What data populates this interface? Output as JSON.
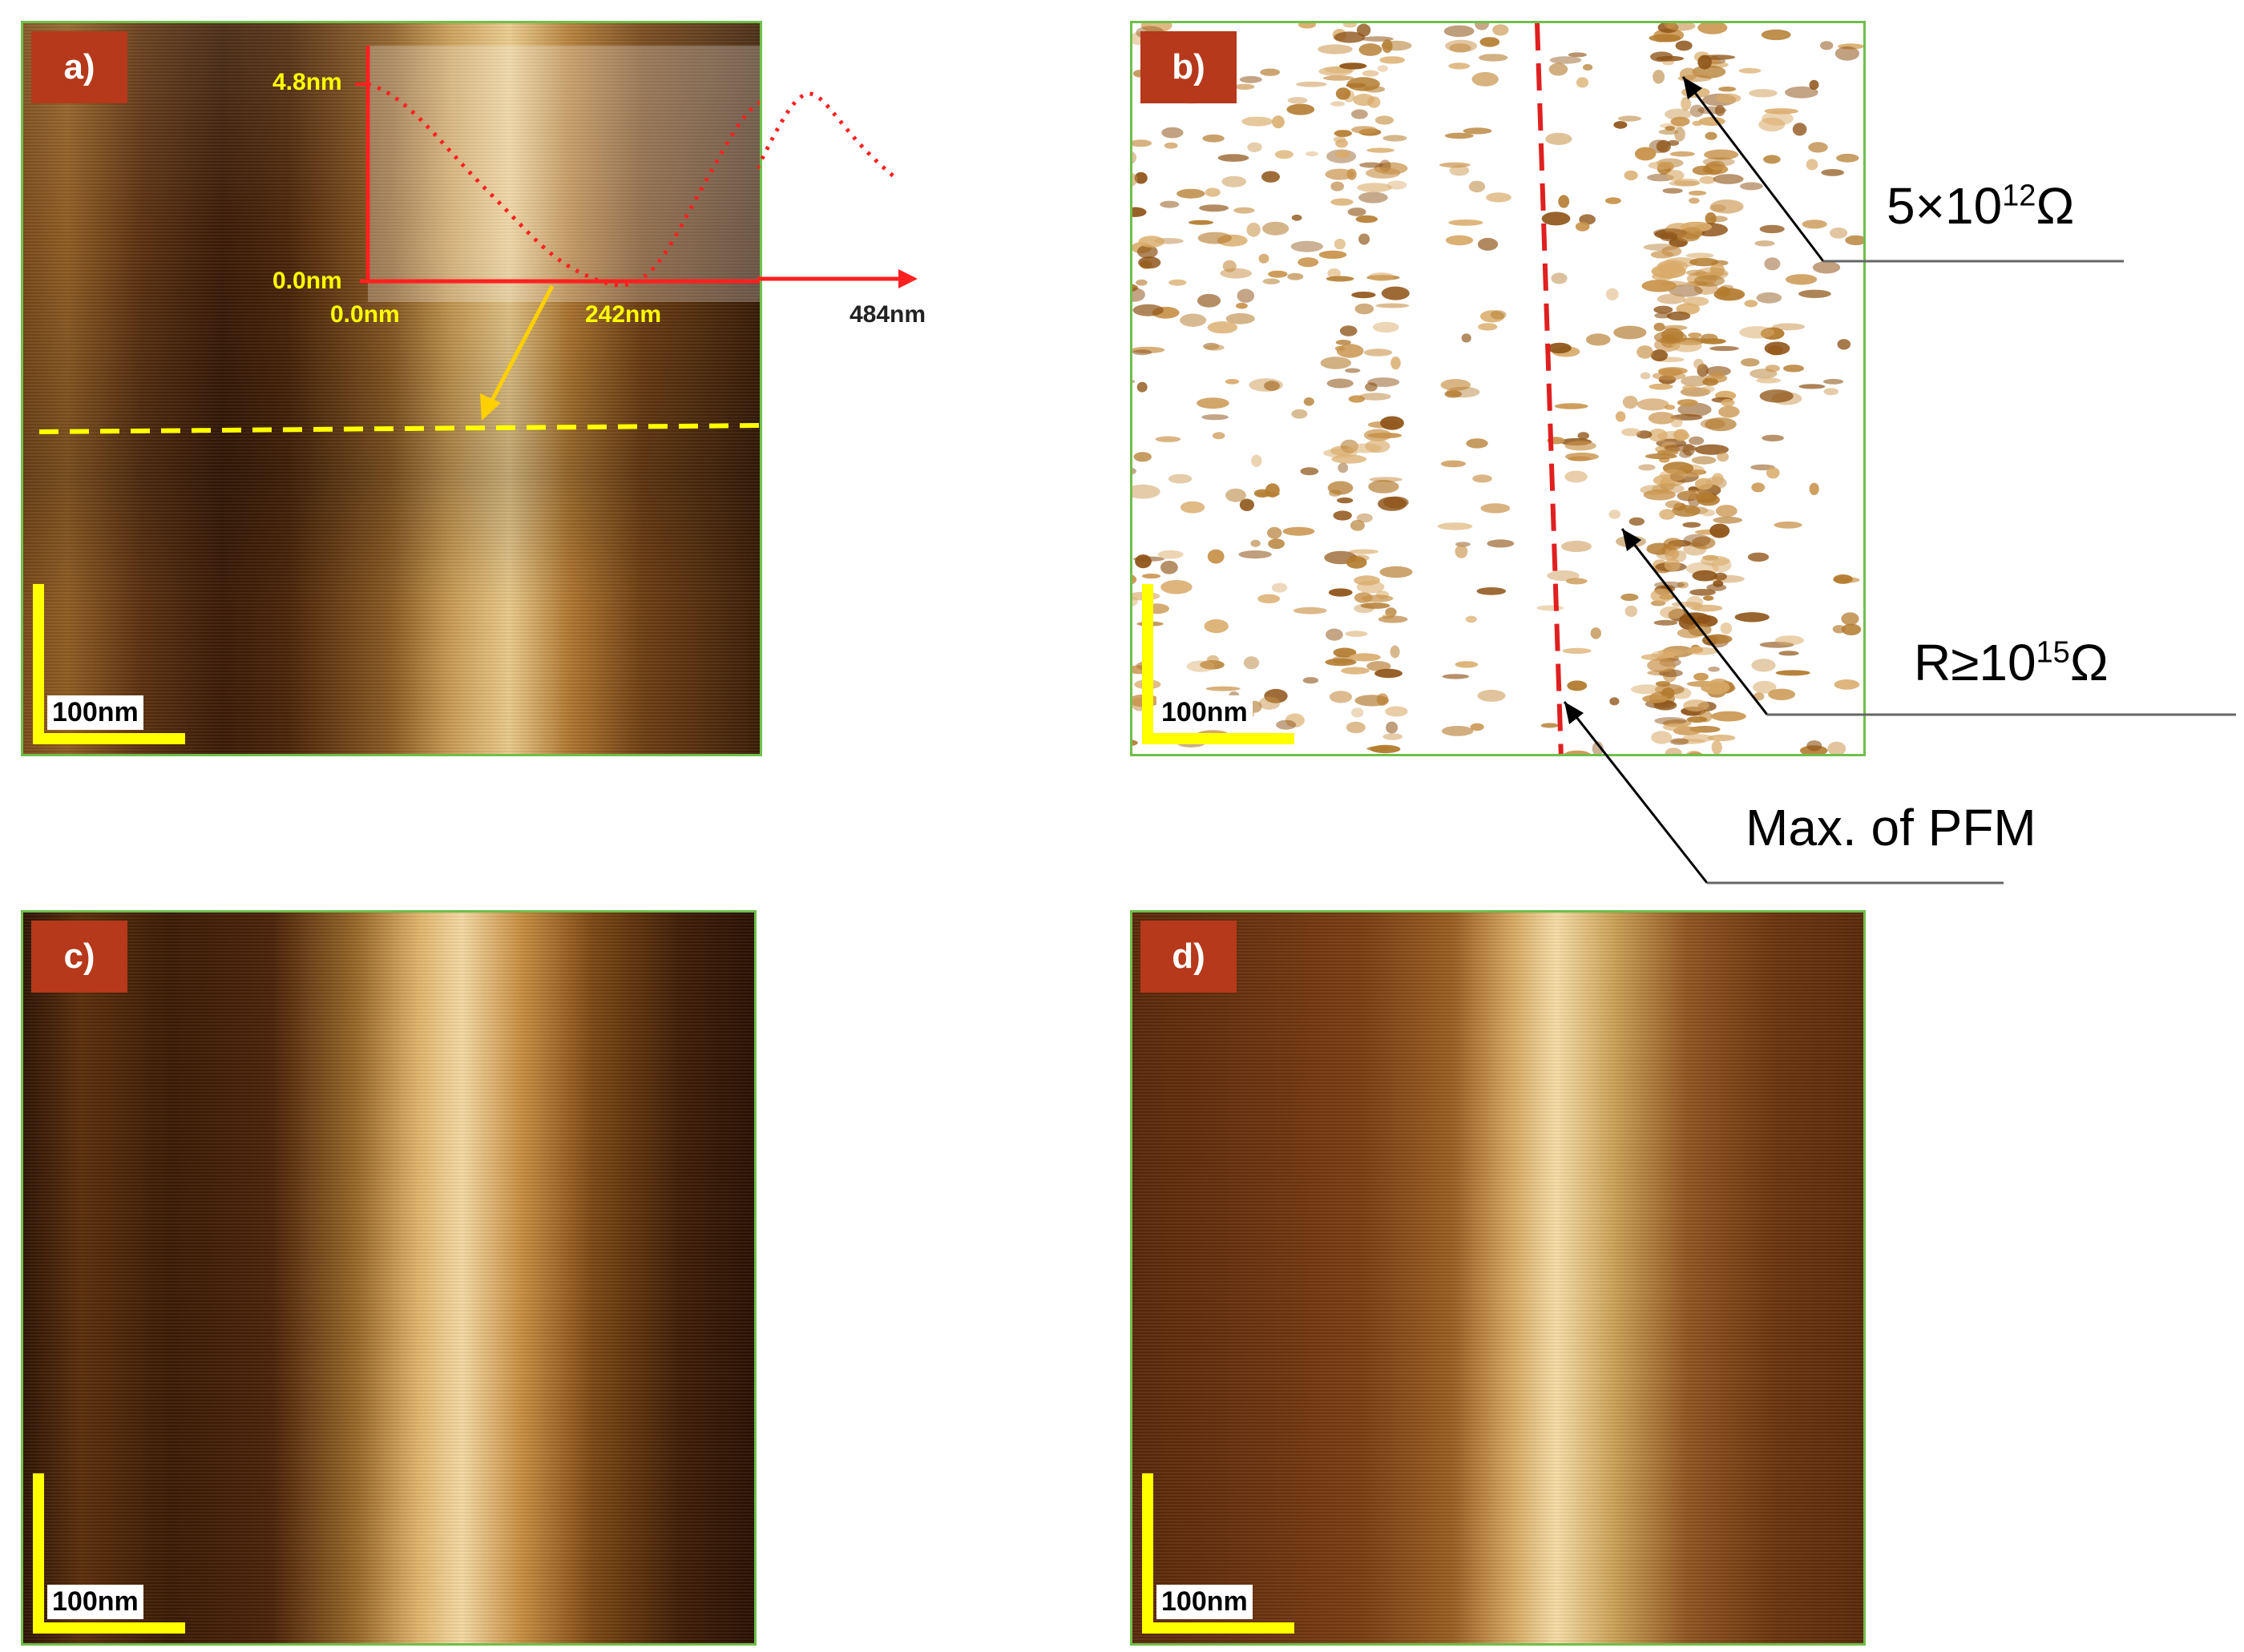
{
  "panels": {
    "a": {
      "label": "a)",
      "scale_bar": "100nm"
    },
    "b": {
      "label": "b)",
      "scale_bar": "100nm"
    },
    "c": {
      "label": "c)",
      "scale_bar": "100nm"
    },
    "d": {
      "label": "d)",
      "scale_bar": "100nm"
    }
  },
  "profile": {
    "y_max_label": "4.8nm",
    "y_min_label": "0.0nm",
    "x_labels": [
      "0.0nm",
      "242nm",
      "484nm"
    ]
  },
  "annotations": {
    "resistance_low": {
      "prefix": "5×10",
      "exp": "12",
      "unit": "Ω"
    },
    "resistance_high": {
      "prefix": "R≥10",
      "exp": "15",
      "unit": "Ω"
    },
    "pfm_max": "Max. of PFM"
  },
  "colors": {
    "panel_border": "#6fbf4a",
    "label_bg": "#b5391a",
    "scale_bar": "#ffff00",
    "profile_axis": "#ff2020",
    "cut_line": "#ffff00",
    "pfm_line": "#e02020"
  }
}
